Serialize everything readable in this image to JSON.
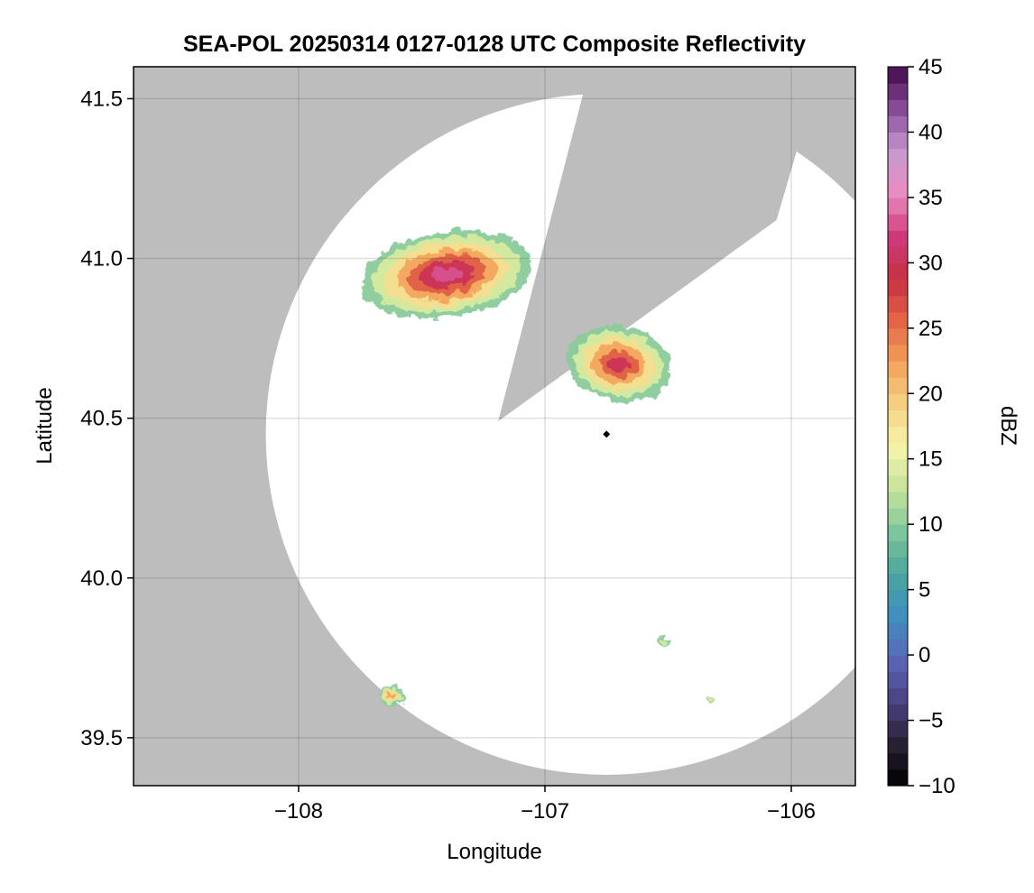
{
  "chart_data": {
    "type": "heatmap",
    "title": "SEA-POL 20250314 0127-0128 UTC Composite Reflectivity",
    "xlabel": "Longitude",
    "ylabel": "Latitude",
    "xlim": [
      -108.67,
      -105.74
    ],
    "ylim": [
      39.35,
      41.6
    ],
    "x_ticks": [
      -108,
      -107,
      -106
    ],
    "x_tick_labels": [
      "−108",
      "−107",
      "−106"
    ],
    "y_ticks": [
      39.5,
      40.0,
      40.5,
      41.0,
      41.5
    ],
    "y_tick_labels": [
      "39.5",
      "40.0",
      "40.5",
      "41.0",
      "41.5"
    ],
    "grid": true,
    "background_color": "#bdbdbd",
    "coverage_color": "#ffffff",
    "radar": {
      "center": [
        -106.75,
        40.45
      ],
      "marker_color": "#000000",
      "blocked_sector_apex": [
        -107.19,
        40.49
      ],
      "blocked_sector_edges": [
        [
          -106.84,
          41.53
        ],
        [
          -106.06,
          41.12
        ]
      ]
    },
    "colorbar": {
      "label": "dBZ",
      "range": [
        -10,
        45
      ],
      "ticks": [
        -10,
        -5,
        0,
        5,
        10,
        15,
        20,
        25,
        30,
        35,
        40,
        45
      ],
      "tick_labels": [
        "−10",
        "−5",
        "0",
        "5",
        "10",
        "15",
        "20",
        "25",
        "30",
        "35",
        "40",
        "45"
      ],
      "colormap": [
        "#000000",
        "#2a2035",
        "#4b4282",
        "#5a68b8",
        "#3f8fc0",
        "#4aa5a0",
        "#7ec59a",
        "#c4e49a",
        "#f5f4aa",
        "#f6d283",
        "#f2a25a",
        "#e46546",
        "#c63041",
        "#d03a7c",
        "#ea8cc0",
        "#c79ad0",
        "#8a4c9a",
        "#400a4a"
      ]
    },
    "echoes": [
      {
        "name": "north-cluster",
        "center": [
          -107.4,
          40.95
        ],
        "peak_dbz": 33
      },
      {
        "name": "east-cluster",
        "center": [
          -106.7,
          40.67
        ],
        "peak_dbz": 32
      },
      {
        "name": "south-west-cell",
        "center": [
          -107.62,
          39.63
        ],
        "peak_dbz": 25
      },
      {
        "name": "south-east-cell",
        "center": [
          -106.52,
          39.8
        ],
        "peak_dbz": 17
      },
      {
        "name": "south-east-speck",
        "center": [
          -106.33,
          39.62
        ],
        "peak_dbz": 20
      }
    ]
  }
}
